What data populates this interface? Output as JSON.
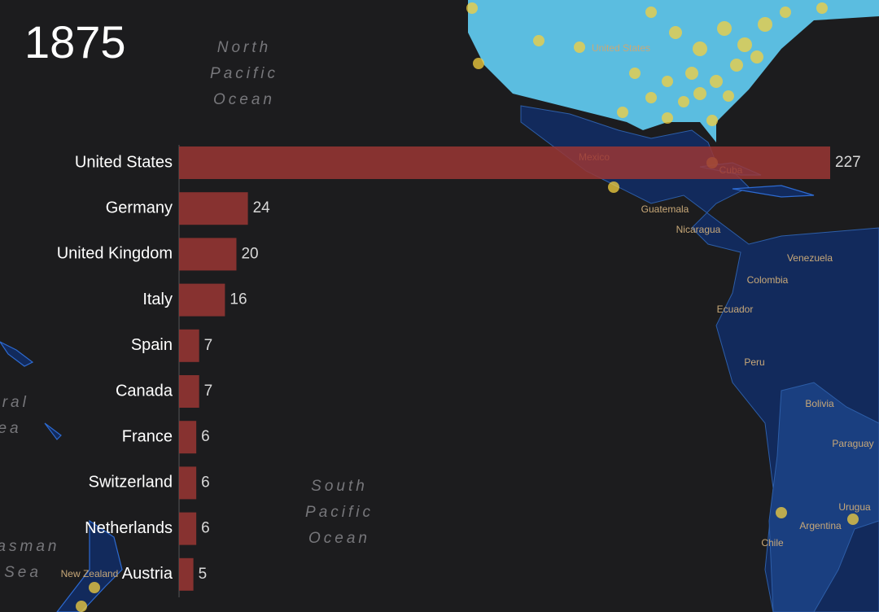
{
  "chart_data": {
    "type": "bar",
    "title": "1875",
    "categories": [
      "United States",
      "Germany",
      "United Kingdom",
      "Italy",
      "Spain",
      "Canada",
      "France",
      "Switzerland",
      "Netherlands",
      "Austria"
    ],
    "values": [
      227,
      24,
      20,
      16,
      7,
      7,
      6,
      6,
      6,
      5
    ],
    "color": "#9a3634"
  },
  "ocean_labels": [
    [
      "North",
      "Pacific",
      "Ocean"
    ],
    [
      "South",
      "Pacific",
      "Ocean"
    ],
    [
      "Tasman",
      "Sea"
    ],
    [
      "oral",
      "ea"
    ]
  ],
  "country_labels": [
    "United States",
    "Mexico",
    "Cuba",
    "Guatemala",
    "Nicaragua",
    "Venezuela",
    "Colombia",
    "Ecuador",
    "Peru",
    "Bolivia",
    "Paraguay",
    "Argentina",
    "Chile",
    "Urugua",
    "New Zealand"
  ]
}
